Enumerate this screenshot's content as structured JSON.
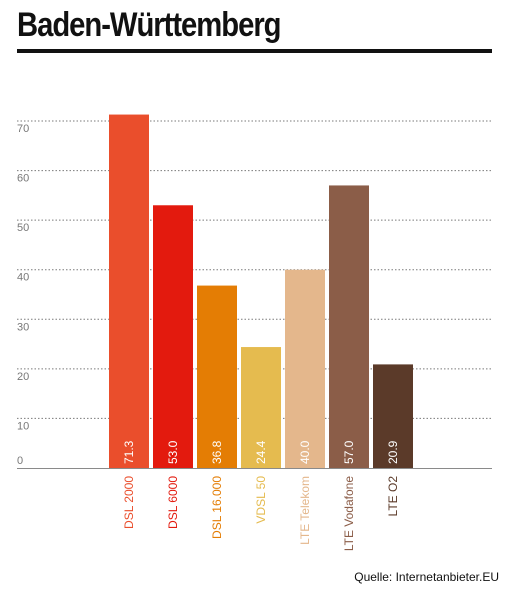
{
  "title": "Baden-Württemberg",
  "source": "Quelle: Internetanbieter.EU",
  "chart_data": {
    "type": "bar",
    "title": "Baden-Württemberg",
    "xlabel": "",
    "ylabel": "",
    "ylim": [
      0,
      70
    ],
    "yticks": [
      0,
      10,
      20,
      30,
      40,
      50,
      60,
      70
    ],
    "grid": true,
    "legend": "none",
    "categories": [
      "DSL 2000",
      "DSL 6000",
      "DSL 16.000",
      "VDSL 50",
      "LTE Telekom",
      "LTE Vodafone",
      "LTE O2"
    ],
    "values": [
      71.3,
      53.0,
      36.8,
      24.4,
      40.0,
      57.0,
      20.9
    ],
    "value_labels": [
      "71.3",
      "53.0",
      "36.8",
      "24.4",
      "40.0",
      "57.0",
      "20.9"
    ],
    "colors": [
      "#ea4e2c",
      "#e31a0e",
      "#e47d04",
      "#e5bb4f",
      "#e4b78c",
      "#8b5d48",
      "#5b3a29"
    ]
  }
}
